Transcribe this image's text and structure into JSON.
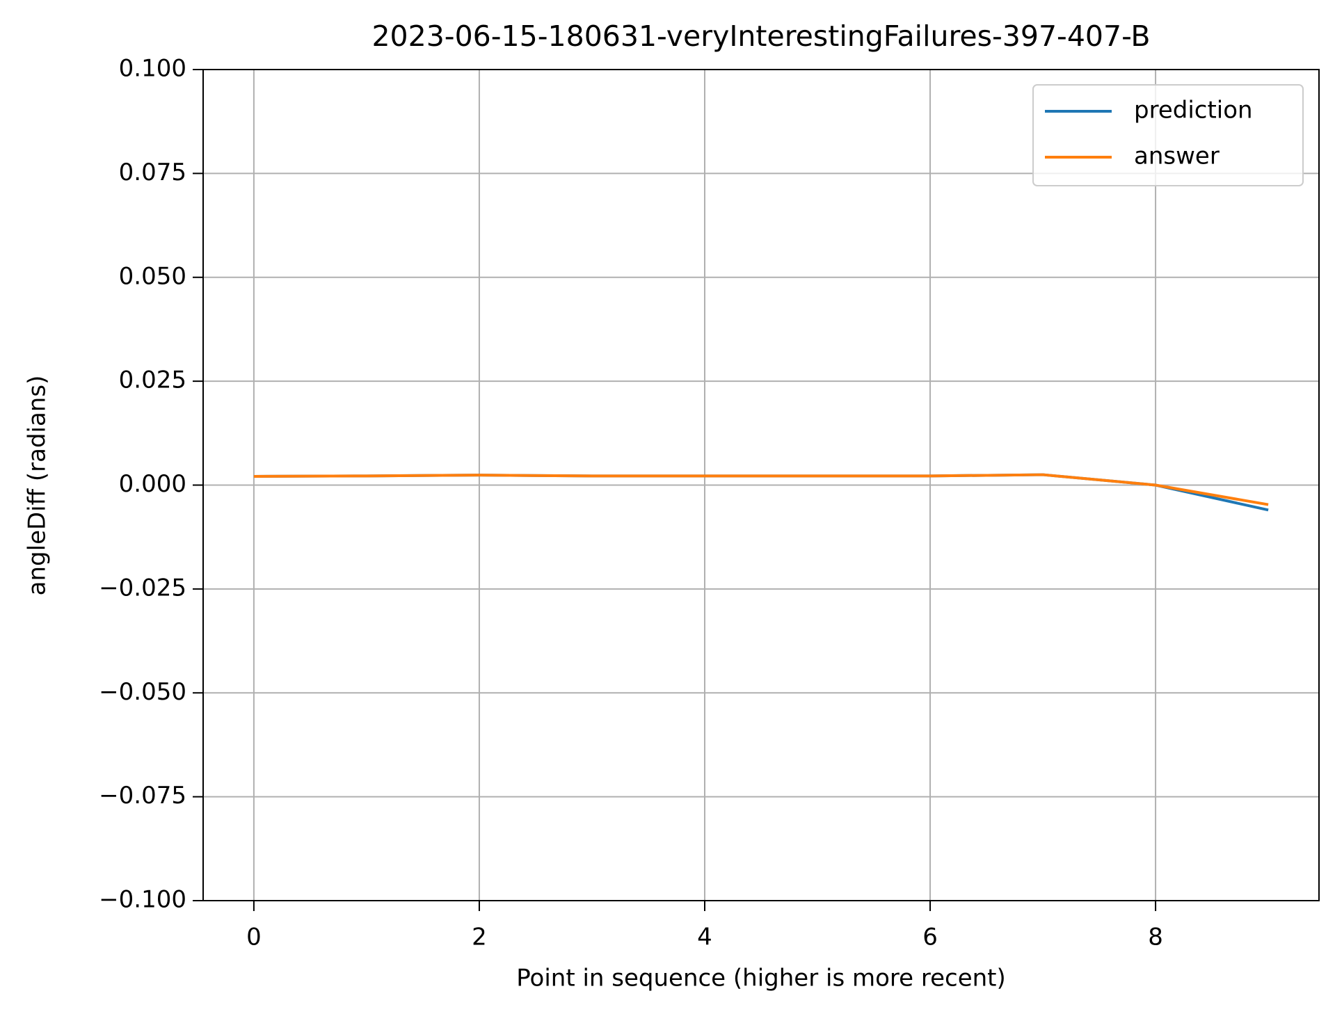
{
  "chart_data": {
    "type": "line",
    "title": "2023-06-15-180631-veryInterestingFailures-397-407-B",
    "x_label": "Point in sequence (higher is more recent)",
    "y_label": "angleDiff (radians)",
    "x": [
      0,
      1,
      2,
      3,
      4,
      5,
      6,
      7,
      8,
      9
    ],
    "series": [
      {
        "name": "prediction",
        "color": "#1f77b4",
        "values": [
          0.0021,
          0.0022,
          0.0024,
          0.0022,
          0.0022,
          0.0022,
          0.0022,
          0.0025,
          0.0,
          -0.006
        ]
      },
      {
        "name": "answer",
        "color": "#ff7f0e",
        "values": [
          0.0021,
          0.0022,
          0.0024,
          0.0022,
          0.0022,
          0.0022,
          0.0022,
          0.0025,
          0.0,
          -0.0047
        ]
      }
    ],
    "xlim": [
      -0.45,
      9.45
    ],
    "xticks": [
      0,
      2,
      4,
      6,
      8
    ],
    "ylim": [
      -0.1,
      0.1
    ],
    "yticks": [
      {
        "value": -0.1,
        "label": "−0.100"
      },
      {
        "value": -0.075,
        "label": "−0.075"
      },
      {
        "value": -0.05,
        "label": "−0.050"
      },
      {
        "value": -0.025,
        "label": "−0.025"
      },
      {
        "value": 0,
        "label": "0.000"
      },
      {
        "value": 0.025,
        "label": "0.025"
      },
      {
        "value": 0.05,
        "label": "0.050"
      },
      {
        "value": 0.075,
        "label": "0.075"
      },
      {
        "value": 0.1,
        "label": "0.100"
      }
    ],
    "grid": true,
    "legend": "upper right"
  }
}
